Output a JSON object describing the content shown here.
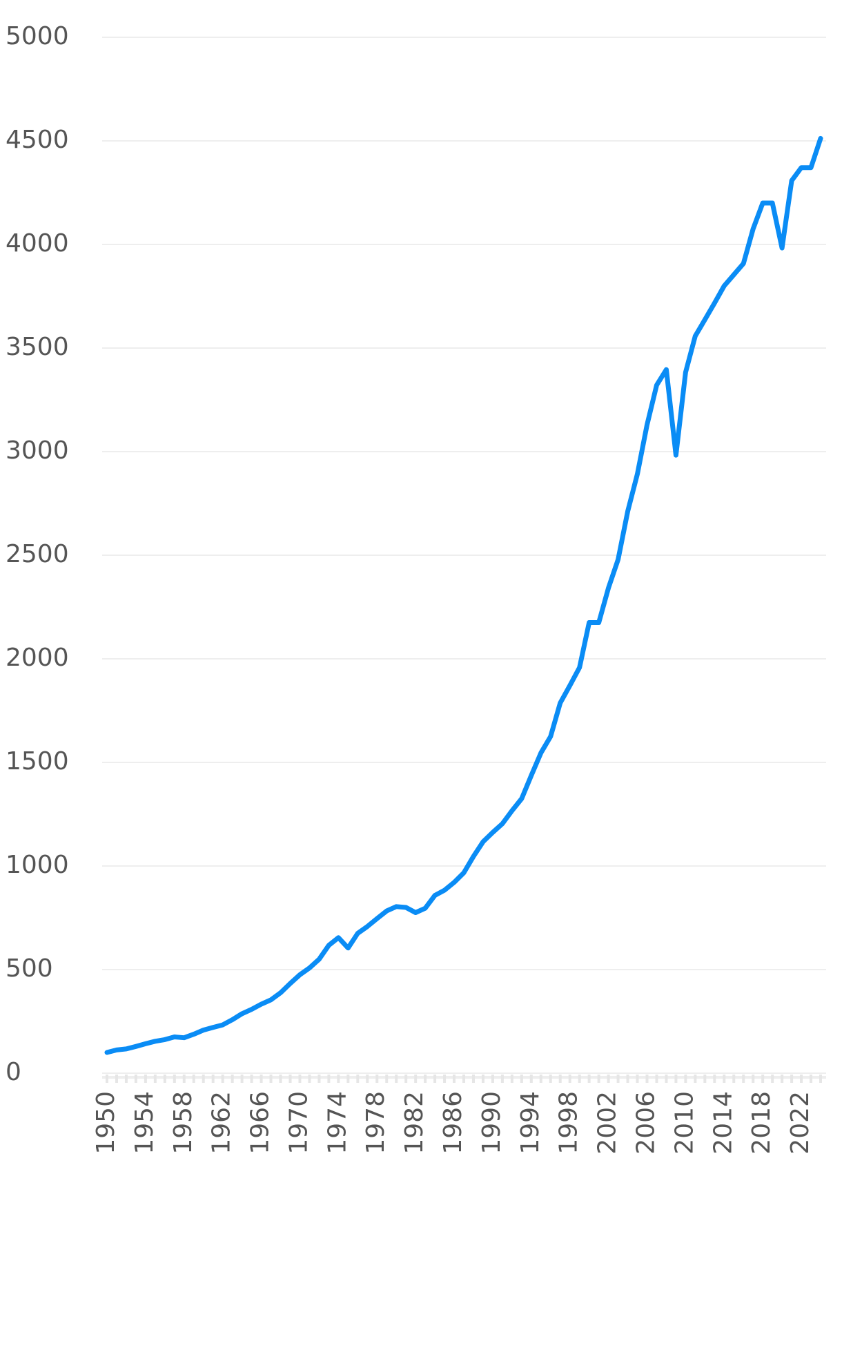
{
  "chart_data": {
    "type": "line",
    "x": [
      1950,
      1951,
      1952,
      1953,
      1954,
      1955,
      1956,
      1957,
      1958,
      1959,
      1960,
      1961,
      1962,
      1963,
      1964,
      1965,
      1966,
      1967,
      1968,
      1969,
      1970,
      1971,
      1972,
      1973,
      1974,
      1975,
      1976,
      1977,
      1978,
      1979,
      1980,
      1981,
      1982,
      1983,
      1984,
      1985,
      1986,
      1987,
      1988,
      1989,
      1990,
      1991,
      1992,
      1993,
      1994,
      1995,
      1996,
      1997,
      1998,
      1999,
      2000,
      2001,
      2002,
      2003,
      2004,
      2005,
      2006,
      2007,
      2008,
      2009,
      2010,
      2011,
      2012,
      2013,
      2014,
      2015,
      2016,
      2017,
      2018,
      2019,
      2020,
      2021,
      2022,
      2023,
      2024
    ],
    "series": [
      {
        "color": "#0a8cf5",
        "values": [
          100,
          112,
          117,
          129,
          142,
          154,
          162,
          175,
          171,
          188,
          208,
          221,
          233,
          258,
          287,
          308,
          333,
          354,
          388,
          433,
          475,
          508,
          550,
          617,
          654,
          604,
          675,
          708,
          746,
          783,
          804,
          800,
          775,
          796,
          858,
          883,
          921,
          967,
          1046,
          1117,
          1162,
          1204,
          1267,
          1325,
          1437,
          1546,
          1625,
          1787,
          1871,
          1958,
          2175,
          2175,
          2342,
          2479,
          2712,
          2892,
          3129,
          3321,
          3396,
          2983,
          3383,
          3558,
          3637,
          3717,
          3800,
          3854,
          3908,
          4075,
          4200,
          4200,
          3983,
          4308,
          4371,
          4371,
          4512
        ]
      }
    ],
    "xlim": [
      1950,
      2024
    ],
    "xticks": [
      1950,
      1954,
      1958,
      1962,
      1966,
      1970,
      1974,
      1978,
      1982,
      1986,
      1990,
      1994,
      1998,
      2002,
      2006,
      2010,
      2014,
      2018,
      2022
    ],
    "ylim": [
      0,
      5000
    ],
    "yticks": [
      0,
      500,
      1000,
      1500,
      2000,
      2500,
      3000,
      3500,
      4000,
      4500,
      5000
    ],
    "grid": true
  }
}
